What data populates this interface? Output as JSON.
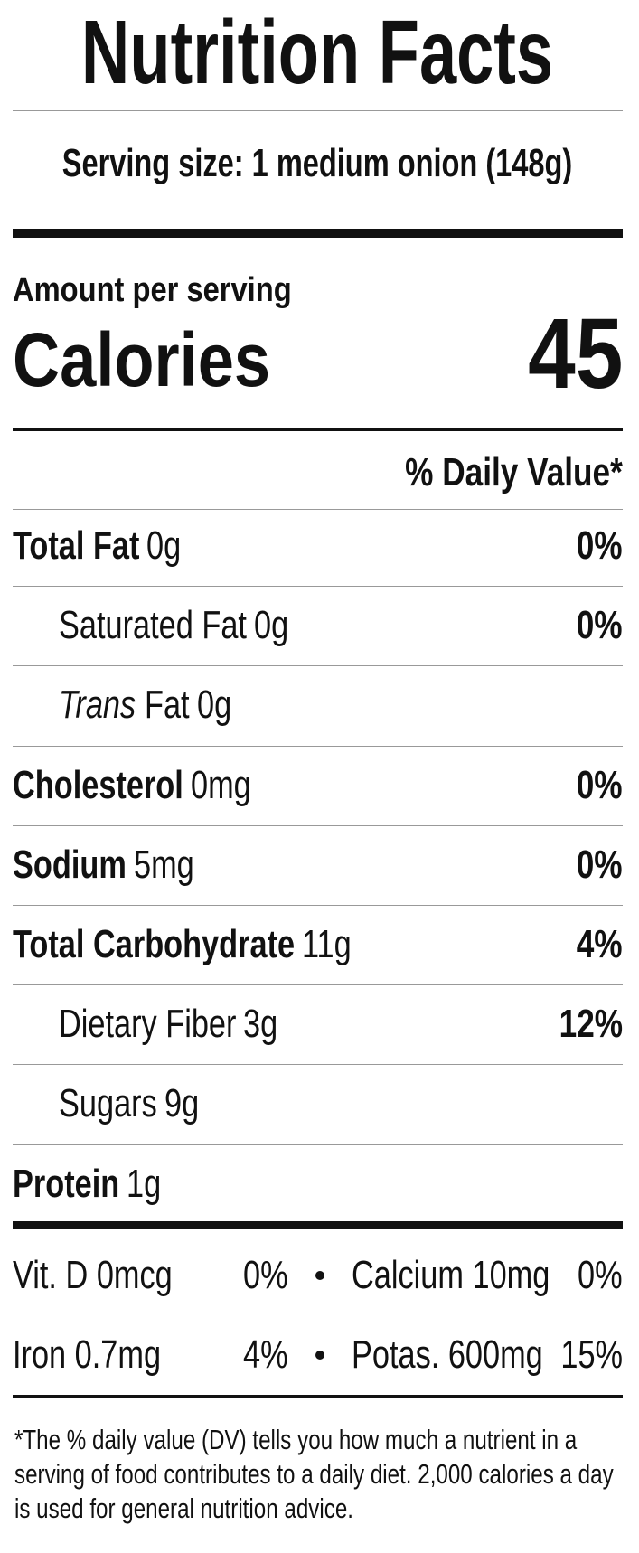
{
  "title": "Nutrition Facts",
  "serving_size": "Serving size: 1 medium onion (148g)",
  "amount_per_serving": "Amount per serving",
  "calories_label": "Calories",
  "calories": 45,
  "daily_value_header": "% Daily Value*",
  "rows": [
    {
      "name": "Total Fat",
      "amount": "0g",
      "dv": "0%",
      "bold": true,
      "indent": false
    },
    {
      "name": "Saturated Fat",
      "amount": "0g",
      "dv": "0%",
      "bold": false,
      "indent": true
    },
    {
      "name_italic": "Trans",
      "name": "Fat",
      "amount": "0g",
      "bold": false,
      "indent": true
    },
    {
      "name": "Cholesterol",
      "amount": "0mg",
      "dv": "0%",
      "bold": true,
      "indent": false
    },
    {
      "name": "Sodium",
      "amount": "5mg",
      "dv": "0%",
      "bold": true,
      "indent": false
    },
    {
      "name": "Total Carbohydrate",
      "amount": "11g",
      "dv": "4%",
      "bold": true,
      "indent": false
    },
    {
      "name": "Dietary Fiber",
      "amount": "3g",
      "dv": "12%",
      "bold": false,
      "indent": true
    },
    {
      "name": "Sugars",
      "amount": "9g",
      "bold": false,
      "indent": true
    },
    {
      "name": "Protein",
      "amount": "1g",
      "bold": true,
      "indent": false
    }
  ],
  "micronutrients": [
    {
      "label": "Vit. D 0mcg",
      "dv": "0%"
    },
    {
      "label": "Calcium 10mg",
      "dv": "0%"
    },
    {
      "label": "Iron 0.7mg",
      "dv": "4%"
    },
    {
      "label": "Potas. 600mg",
      "dv": "15%"
    }
  ],
  "footnote": "*The % daily value (DV) tells you how much a nutrient in a serving of food contributes to a daily diet. 2,000 calories a day is used for general nutrition advice."
}
